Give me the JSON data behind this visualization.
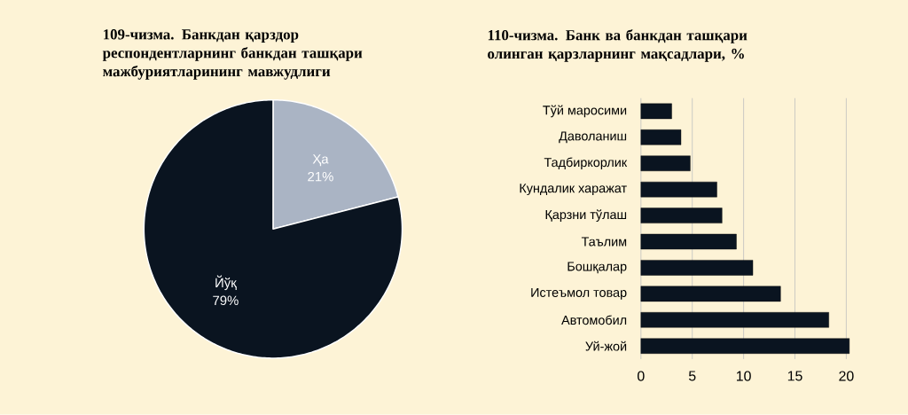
{
  "chart_data": [
    {
      "type": "pie",
      "title": "109-чизма. Банкдан қарздор респондентларнинг банкдан ташқари мажбуриятларининг мавжудлиги",
      "categories": [
        "Ҳа",
        "Йўқ"
      ],
      "values": [
        21,
        79
      ],
      "colors": [
        "#aab4c4",
        "#0a1420"
      ],
      "value_labels": [
        "21%",
        "79%"
      ]
    },
    {
      "type": "bar",
      "orientation": "horizontal",
      "title": "110-чизма. Банк ва банкдан ташқари олинган қарзларнинг мақсадлари, %",
      "categories": [
        "Тўй маросими",
        "Даволаниш",
        "Тадбиркорлик",
        "Кундалик харажат",
        "Қарзни тўлаш",
        "Таълим",
        "Бошқалар",
        "Истеъмол товар",
        "Автомобил",
        "Уй-жой"
      ],
      "values": [
        3.0,
        3.9,
        4.8,
        7.4,
        7.9,
        9.3,
        10.9,
        13.6,
        18.3,
        20.3
      ],
      "color": "#0a1420",
      "xlim": [
        0,
        20.5
      ],
      "xticks": [
        0,
        5,
        10,
        15,
        20
      ],
      "grid": "x"
    }
  ]
}
